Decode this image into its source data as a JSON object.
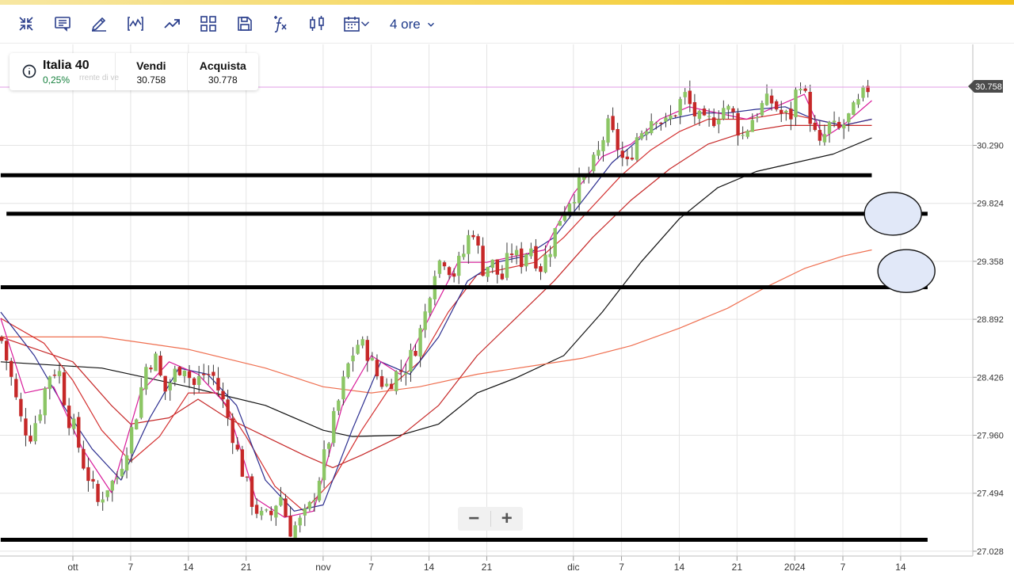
{
  "toolbar": {
    "icons": [
      "collapse-icon",
      "comment-icon",
      "pencil-icon",
      "line-chart-icon",
      "trend-icon",
      "layout-grid-icon",
      "save-icon",
      "formula-icon",
      "candlestick-icon",
      "calendar-icon"
    ],
    "timeframe_label": "4 ore"
  },
  "instrument": {
    "name": "Italia 40",
    "change": "0,25%",
    "ghost_text": "rrente di ve",
    "sell_label": "Vendi",
    "sell_value": "30.758",
    "buy_label": "Acquista",
    "buy_value": "30.778"
  },
  "zoom": {
    "minus": "−",
    "plus": "+"
  },
  "colors": {
    "up_candle": "#8cc665",
    "down_candle": "#c62828",
    "ma_fast": "#d81b9a",
    "ma_mid": "#2b2d8f",
    "ma_red1": "#d32f2f",
    "ma_red2": "#c62828",
    "ma_black": "#111111",
    "ma_orange": "#ef6f50",
    "price_line": "#e29ee6",
    "annotation_ellipse_fill": "#e1e8f8"
  },
  "chart_data": {
    "type": "candlestick",
    "current_price": "30.758",
    "y_ticks": [
      "30.290",
      "29.824",
      "29.358",
      "28.892",
      "28.426",
      "27.960",
      "27.494",
      "27.028"
    ],
    "ylim": [
      26.9,
      31.1
    ],
    "x_ticks": [
      {
        "label": "ott",
        "day": 0
      },
      {
        "label": "7",
        "day": 6
      },
      {
        "label": "14",
        "day": 12
      },
      {
        "label": "21",
        "day": 18
      },
      {
        "label": "nov",
        "day": 26
      },
      {
        "label": "7",
        "day": 31
      },
      {
        "label": "14",
        "day": 37
      },
      {
        "label": "21",
        "day": 43
      },
      {
        "label": "dic",
        "day": 52
      },
      {
        "label": "7",
        "day": 57
      },
      {
        "label": "14",
        "day": 63
      },
      {
        "label": "21",
        "day": 69
      },
      {
        "label": "2024",
        "day": 75
      },
      {
        "label": "7",
        "day": 80
      },
      {
        "label": "14",
        "day": 86
      }
    ],
    "price_path": [
      [
        -7.5,
        28.75
      ],
      [
        -6.5,
        28.45
      ],
      [
        -5.5,
        28.1
      ],
      [
        -4.5,
        27.95
      ],
      [
        -3.5,
        28.15
      ],
      [
        -2.5,
        28.45
      ],
      [
        -1.5,
        28.5
      ],
      [
        -0.5,
        28.1
      ],
      [
        0,
        28.05
      ],
      [
        1,
        27.75
      ],
      [
        2,
        27.55
      ],
      [
        2.5,
        27.4
      ],
      [
        3.5,
        27.55
      ],
      [
        4.5,
        27.6
      ],
      [
        5.5,
        27.85
      ],
      [
        6.5,
        28.1
      ],
      [
        7.5,
        28.5
      ],
      [
        8.5,
        28.6
      ],
      [
        9.5,
        28.3
      ],
      [
        10.5,
        28.45
      ],
      [
        11.5,
        28.55
      ],
      [
        12.5,
        28.35
      ],
      [
        13.5,
        28.45
      ],
      [
        14.5,
        28.45
      ],
      [
        15.5,
        28.25
      ],
      [
        16.5,
        28.0
      ],
      [
        17.5,
        27.7
      ],
      [
        18.5,
        27.45
      ],
      [
        19.5,
        27.3
      ],
      [
        20.5,
        27.3
      ],
      [
        21.5,
        27.5
      ],
      [
        22.5,
        27.2
      ],
      [
        23.5,
        27.25
      ],
      [
        24.5,
        27.35
      ],
      [
        25.5,
        27.6
      ],
      [
        26.5,
        27.9
      ],
      [
        27.5,
        28.2
      ],
      [
        28.5,
        28.5
      ],
      [
        29.5,
        28.7
      ],
      [
        30.5,
        28.65
      ],
      [
        31.5,
        28.45
      ],
      [
        32.5,
        28.35
      ],
      [
        33.5,
        28.45
      ],
      [
        34.5,
        28.5
      ],
      [
        35.5,
        28.65
      ],
      [
        36.5,
        28.9
      ],
      [
        37.5,
        29.3
      ],
      [
        38.5,
        29.4
      ],
      [
        39.5,
        29.25
      ],
      [
        40.5,
        29.4
      ],
      [
        41.5,
        29.65
      ],
      [
        42.5,
        29.3
      ],
      [
        43.5,
        29.35
      ],
      [
        44.5,
        29.2
      ],
      [
        45.5,
        29.45
      ],
      [
        46.5,
        29.35
      ],
      [
        47.5,
        29.5
      ],
      [
        48.5,
        29.3
      ],
      [
        49.5,
        29.45
      ],
      [
        50.5,
        29.7
      ],
      [
        51.5,
        29.85
      ],
      [
        52.5,
        29.95
      ],
      [
        53.5,
        30.05
      ],
      [
        54.5,
        30.2
      ],
      [
        55.5,
        30.45
      ],
      [
        56.5,
        30.3
      ],
      [
        57.5,
        30.1
      ],
      [
        58.5,
        30.35
      ],
      [
        59.5,
        30.45
      ],
      [
        60.5,
        30.55
      ],
      [
        61.5,
        30.45
      ],
      [
        62.5,
        30.55
      ],
      [
        63.5,
        30.7
      ],
      [
        64.5,
        30.55
      ],
      [
        65.5,
        30.45
      ],
      [
        66.5,
        30.5
      ],
      [
        67.5,
        30.6
      ],
      [
        68.5,
        30.55
      ],
      [
        69.5,
        30.35
      ],
      [
        70.5,
        30.5
      ],
      [
        71.5,
        30.6
      ],
      [
        72.5,
        30.65
      ],
      [
        73.5,
        30.55
      ],
      [
        74.5,
        30.5
      ],
      [
        75.5,
        30.85
      ],
      [
        76.5,
        30.55
      ],
      [
        77.5,
        30.25
      ],
      [
        78.5,
        30.45
      ],
      [
        79.5,
        30.4
      ],
      [
        80.5,
        30.5
      ],
      [
        81.5,
        30.6
      ],
      [
        82.5,
        30.75
      ],
      [
        83,
        30.76
      ]
    ],
    "moving_averages": [
      {
        "color_key": "ma_black",
        "points": [
          [
            -7.5,
            28.55
          ],
          [
            3,
            28.5
          ],
          [
            12,
            28.35
          ],
          [
            20,
            28.2
          ],
          [
            26,
            28.0
          ],
          [
            29,
            27.95
          ],
          [
            34,
            27.96
          ],
          [
            38,
            28.05
          ],
          [
            42,
            28.3
          ],
          [
            46,
            28.42
          ],
          [
            51,
            28.6
          ],
          [
            55,
            28.95
          ],
          [
            59,
            29.35
          ],
          [
            63,
            29.7
          ],
          [
            67,
            29.95
          ],
          [
            71,
            30.08
          ],
          [
            75,
            30.15
          ],
          [
            79,
            30.22
          ],
          [
            83,
            30.35
          ]
        ]
      },
      {
        "color_key": "ma_orange",
        "points": [
          [
            -7.5,
            28.75
          ],
          [
            3,
            28.75
          ],
          [
            12,
            28.65
          ],
          [
            20,
            28.5
          ],
          [
            26,
            28.35
          ],
          [
            31,
            28.3
          ],
          [
            36,
            28.35
          ],
          [
            42,
            28.45
          ],
          [
            48,
            28.52
          ],
          [
            53,
            28.58
          ],
          [
            58,
            28.68
          ],
          [
            63,
            28.82
          ],
          [
            68,
            28.98
          ],
          [
            72,
            29.15
          ],
          [
            76,
            29.3
          ],
          [
            80,
            29.4
          ],
          [
            83,
            29.45
          ]
        ]
      },
      {
        "color_key": "ma_red2",
        "points": [
          [
            -7.5,
            28.75
          ],
          [
            0,
            28.55
          ],
          [
            4,
            28.2
          ],
          [
            6,
            28.05
          ],
          [
            10,
            28.1
          ],
          [
            13,
            28.25
          ],
          [
            16,
            28.1
          ],
          [
            20,
            27.95
          ],
          [
            24,
            27.8
          ],
          [
            27,
            27.7
          ],
          [
            30,
            27.8
          ],
          [
            34,
            27.95
          ],
          [
            38,
            28.2
          ],
          [
            42,
            28.6
          ],
          [
            46,
            28.9
          ],
          [
            50,
            29.2
          ],
          [
            54,
            29.55
          ],
          [
            58,
            29.85
          ],
          [
            62,
            30.1
          ],
          [
            66,
            30.3
          ],
          [
            70,
            30.4
          ],
          [
            74,
            30.45
          ],
          [
            78,
            30.45
          ],
          [
            83,
            30.45
          ]
        ]
      },
      {
        "color_key": "ma_red1",
        "points": [
          [
            -7.5,
            28.9
          ],
          [
            -3,
            28.7
          ],
          [
            0,
            28.4
          ],
          [
            3,
            28.0
          ],
          [
            6,
            27.75
          ],
          [
            9,
            27.95
          ],
          [
            12,
            28.3
          ],
          [
            15,
            28.3
          ],
          [
            18,
            27.95
          ],
          [
            21,
            27.55
          ],
          [
            24,
            27.35
          ],
          [
            27,
            27.6
          ],
          [
            30,
            28.0
          ],
          [
            33,
            28.35
          ],
          [
            36,
            28.55
          ],
          [
            39,
            28.95
          ],
          [
            42,
            29.25
          ],
          [
            45,
            29.3
          ],
          [
            48,
            29.35
          ],
          [
            51,
            29.55
          ],
          [
            54,
            29.8
          ],
          [
            57,
            30.05
          ],
          [
            60,
            30.25
          ],
          [
            63,
            30.4
          ],
          [
            66,
            30.5
          ],
          [
            70,
            30.5
          ],
          [
            74,
            30.55
          ],
          [
            77,
            30.5
          ],
          [
            80,
            30.45
          ],
          [
            83,
            30.5
          ]
        ]
      },
      {
        "color_key": "ma_mid",
        "points": [
          [
            -7.5,
            28.95
          ],
          [
            -4,
            28.6
          ],
          [
            -1,
            28.2
          ],
          [
            2,
            27.85
          ],
          [
            5,
            27.6
          ],
          [
            8,
            28.1
          ],
          [
            11,
            28.5
          ],
          [
            14,
            28.45
          ],
          [
            17,
            28.2
          ],
          [
            20,
            27.6
          ],
          [
            23,
            27.35
          ],
          [
            26,
            27.4
          ],
          [
            29,
            28.0
          ],
          [
            32,
            28.55
          ],
          [
            35,
            28.45
          ],
          [
            38,
            28.75
          ],
          [
            41,
            29.2
          ],
          [
            44,
            29.35
          ],
          [
            47,
            29.4
          ],
          [
            50,
            29.55
          ],
          [
            53,
            29.85
          ],
          [
            56,
            30.15
          ],
          [
            59,
            30.35
          ],
          [
            62,
            30.5
          ],
          [
            65,
            30.55
          ],
          [
            68,
            30.55
          ],
          [
            71,
            30.58
          ],
          [
            74,
            30.6
          ],
          [
            77,
            30.5
          ],
          [
            80,
            30.45
          ],
          [
            83,
            30.5
          ]
        ]
      },
      {
        "color_key": "ma_fast",
        "points": [
          [
            -7.5,
            28.9
          ],
          [
            -5,
            28.3
          ],
          [
            -2,
            28.35
          ],
          [
            1,
            27.85
          ],
          [
            4,
            27.5
          ],
          [
            7,
            28.3
          ],
          [
            10,
            28.55
          ],
          [
            13,
            28.45
          ],
          [
            16,
            28.2
          ],
          [
            19,
            27.45
          ],
          [
            22,
            27.3
          ],
          [
            25,
            27.35
          ],
          [
            28,
            28.2
          ],
          [
            31,
            28.6
          ],
          [
            34,
            28.45
          ],
          [
            37,
            28.9
          ],
          [
            40,
            29.35
          ],
          [
            43,
            29.35
          ],
          [
            46,
            29.4
          ],
          [
            49,
            29.45
          ],
          [
            52,
            29.9
          ],
          [
            55,
            30.2
          ],
          [
            58,
            30.3
          ],
          [
            61,
            30.5
          ],
          [
            64,
            30.6
          ],
          [
            67,
            30.55
          ],
          [
            70,
            30.5
          ],
          [
            73,
            30.6
          ],
          [
            76,
            30.7
          ],
          [
            78,
            30.35
          ],
          [
            80,
            30.45
          ],
          [
            83,
            30.65
          ]
        ]
      }
    ],
    "horizontal_lines": [
      {
        "x1_day": -7.5,
        "x2_day": 83.0,
        "value": 30.05
      },
      {
        "x1_day": -6.9,
        "x2_day": 88.8,
        "value": 29.74
      },
      {
        "x1_day": -7.5,
        "x2_day": 88.8,
        "value": 29.15
      },
      {
        "x1_day": -7.5,
        "x2_day": 88.8,
        "value": 27.12
      }
    ],
    "annotations": [
      {
        "type": "ellipse",
        "day": 85.2,
        "value": 29.74
      },
      {
        "type": "ellipse",
        "day": 86.6,
        "value": 29.28
      }
    ]
  }
}
